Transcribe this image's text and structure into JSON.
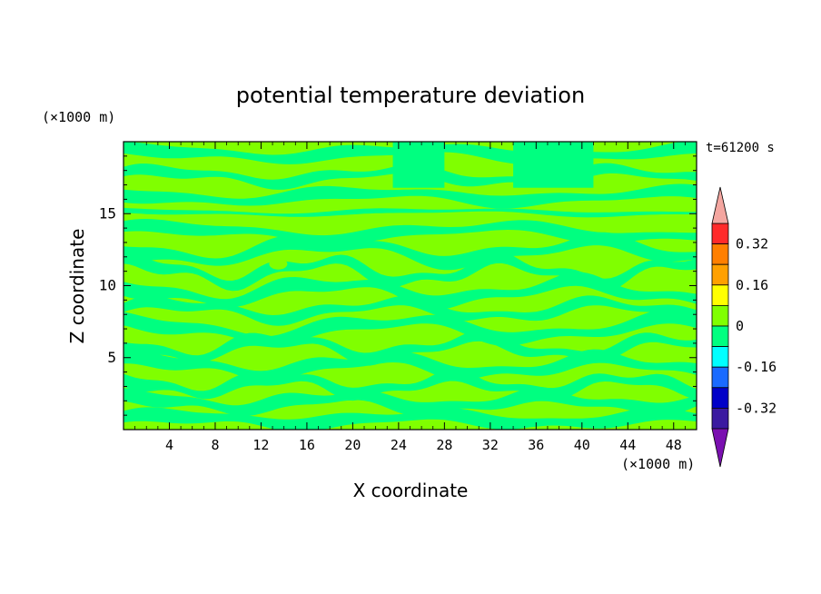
{
  "chart_data": {
    "type": "heatmap",
    "title": "potential temperature deviation",
    "xlabel": "X coordinate",
    "ylabel": "Z coordinate",
    "x_unit": "(×1000 m)",
    "y_unit": "(×1000 m)",
    "time_label": "t=61200 s",
    "xlim": [
      0,
      50
    ],
    "ylim": [
      0,
      20
    ],
    "x_ticks": [
      4,
      8,
      12,
      16,
      20,
      24,
      28,
      32,
      36,
      40,
      44,
      48
    ],
    "y_ticks": [
      5,
      10,
      15
    ],
    "field_levels_present": [
      -0.08,
      0.0
    ],
    "colorbar": {
      "levels": [
        -0.4,
        -0.32,
        -0.24,
        -0.16,
        -0.08,
        0,
        0.08,
        0.16,
        0.24,
        0.32,
        0.4
      ],
      "labels": [
        "0.32",
        "0.16",
        "0",
        "-0.16",
        "-0.32"
      ],
      "label_values": [
        0.32,
        0.16,
        0,
        -0.16,
        -0.32
      ],
      "colors_top_to_bottom": [
        "#ff2a2a",
        "#ff7f00",
        "#ffa000",
        "#ffff00",
        "#80ff00",
        "#00ff80",
        "#00ffff",
        "#1a6bff",
        "#0000c8",
        "#3a1aa0"
      ],
      "over_color": "#f4a6a0",
      "under_color": "#7a10b0"
    },
    "colors": {
      "band_a": "#80ff00",
      "band_b": "#00ff80"
    }
  }
}
